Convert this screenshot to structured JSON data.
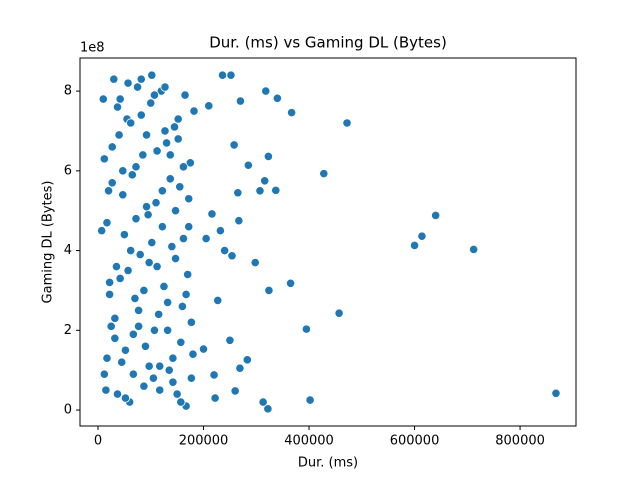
{
  "chart_data": {
    "type": "scatter",
    "title": "Dur. (ms) vs Gaming DL (Bytes)",
    "x_label": "Dur. (ms)",
    "y_label": "Gaming DL (Bytes)",
    "y_offset_label": "1e8",
    "color": "#1f77b4",
    "xlim": [
      -34100,
      906000
    ],
    "ylim": [
      -40000000,
      883000000
    ],
    "xticks": [
      0,
      200000,
      400000,
      600000,
      800000
    ],
    "yticks": [
      {
        "value": 0,
        "label": "0"
      },
      {
        "value": 200000000,
        "label": "2"
      },
      {
        "value": 400000000,
        "label": "4"
      },
      {
        "value": 600000000,
        "label": "6"
      },
      {
        "value": 800000000,
        "label": "8"
      }
    ],
    "x": [
      868000,
      712000,
      640000,
      614000,
      600000,
      472000,
      457000,
      428000,
      402000,
      395000,
      367000,
      365000,
      340000,
      337000,
      324000,
      323000,
      322000,
      318000,
      316000,
      313000,
      307000,
      298000,
      285000,
      283000,
      270000,
      269000,
      267000,
      265000,
      260000,
      258000,
      254000,
      252000,
      250000,
      240000,
      236000,
      232000,
      227000,
      222000,
      220000,
      216000,
      210000,
      205000,
      200000,
      10000,
      15000,
      20000,
      25000,
      30000,
      35000,
      40000,
      45000,
      50000,
      55000,
      60000,
      65000,
      70000,
      75000,
      80000,
      85000,
      90000,
      95000,
      100000,
      105000,
      110000,
      115000,
      120000,
      125000,
      130000,
      135000,
      140000,
      145000,
      150000,
      155000,
      160000,
      165000,
      170000,
      175000,
      180000,
      12000,
      17000,
      22000,
      27000,
      32000,
      37000,
      42000,
      47000,
      52000,
      57000,
      62000,
      67000,
      72000,
      77000,
      82000,
      87000,
      92000,
      97000,
      102000,
      107000,
      112000,
      117000,
      122000,
      127000,
      132000,
      137000,
      142000,
      147000,
      152000,
      157000,
      162000,
      167000,
      172000,
      177000,
      182000,
      7000,
      12000,
      17000,
      22000,
      27000,
      32000,
      37000,
      42000,
      47000,
      52000,
      57000,
      62000,
      67000,
      72000,
      77000,
      82000,
      87000,
      92000,
      97000,
      102000,
      107000,
      112000,
      117000,
      122000,
      127000,
      132000,
      137000,
      142000,
      147000,
      152000,
      157000,
      162000,
      167000,
      172000,
      177000
    ],
    "values": [
      42000000.0,
      403000000.0,
      488000000.0,
      436000000.0,
      413000000.0,
      720000000.0,
      243000000.0,
      593000000.0,
      25000000.0,
      203000000.0,
      746000000.0,
      318000000.0,
      782000000.0,
      551000000.0,
      300000000.0,
      636000000.0,
      3000000.0,
      800000000.0,
      575000000.0,
      20000000.0,
      550000000.0,
      370000000.0,
      614000000.0,
      126000000.0,
      775000000.0,
      105000000.0,
      475000000.0,
      545000000.0,
      48000000.0,
      665000000.0,
      387000000.0,
      840000000.0,
      175000000.0,
      400000000.0,
      840000000.0,
      450000000.0,
      275000000.0,
      30000000.0,
      88000000.0,
      492000000.0,
      763000000.0,
      430000000.0,
      153000000.0,
      780000000.0,
      50000000.0,
      550000000.0,
      210000000.0,
      830000000.0,
      360000000.0,
      690000000.0,
      120000000.0,
      440000000.0,
      730000000.0,
      20000000.0,
      590000000.0,
      280000000.0,
      810000000.0,
      390000000.0,
      640000000.0,
      160000000.0,
      490000000.0,
      770000000.0,
      80000000.0,
      520000000.0,
      240000000.0,
      800000000.0,
      310000000.0,
      670000000.0,
      100000000.0,
      410000000.0,
      710000000.0,
      40000000.0,
      560000000.0,
      260000000.0,
      790000000.0,
      340000000.0,
      620000000.0,
      140000000.0,
      90000000.0,
      470000000.0,
      290000000.0,
      660000000.0,
      180000000.0,
      760000000.0,
      330000000.0,
      540000000.0,
      30000000.0,
      820000000.0,
      400000000.0,
      190000000.0,
      610000000.0,
      250000000.0,
      740000000.0,
      60000000.0,
      510000000.0,
      370000000.0,
      840000000.0,
      200000000.0,
      650000000.0,
      110000000.0,
      460000000.0,
      700000000.0,
      270000000.0,
      580000000.0,
      70000000.0,
      380000000.0,
      680000000.0,
      170000000.0,
      430000000.0,
      10000000.0,
      530000000.0,
      220000000.0,
      750000000.0,
      450000000.0,
      630000000.0,
      130000000.0,
      320000000.0,
      570000000.0,
      230000000.0,
      40000000.0,
      780000000.0,
      600000000.0,
      150000000.0,
      350000000.0,
      720000000.0,
      90000000.0,
      480000000.0,
      210000000.0,
      830000000.0,
      300000000.0,
      690000000.0,
      110000000.0,
      420000000.0,
      790000000.0,
      360000000.0,
      50000000.0,
      550000000.0,
      810000000.0,
      200000000.0,
      640000000.0,
      130000000.0,
      500000000.0,
      730000000.0,
      20000000.0,
      610000000.0,
      290000000.0,
      460000000.0,
      80000000.0
    ]
  }
}
